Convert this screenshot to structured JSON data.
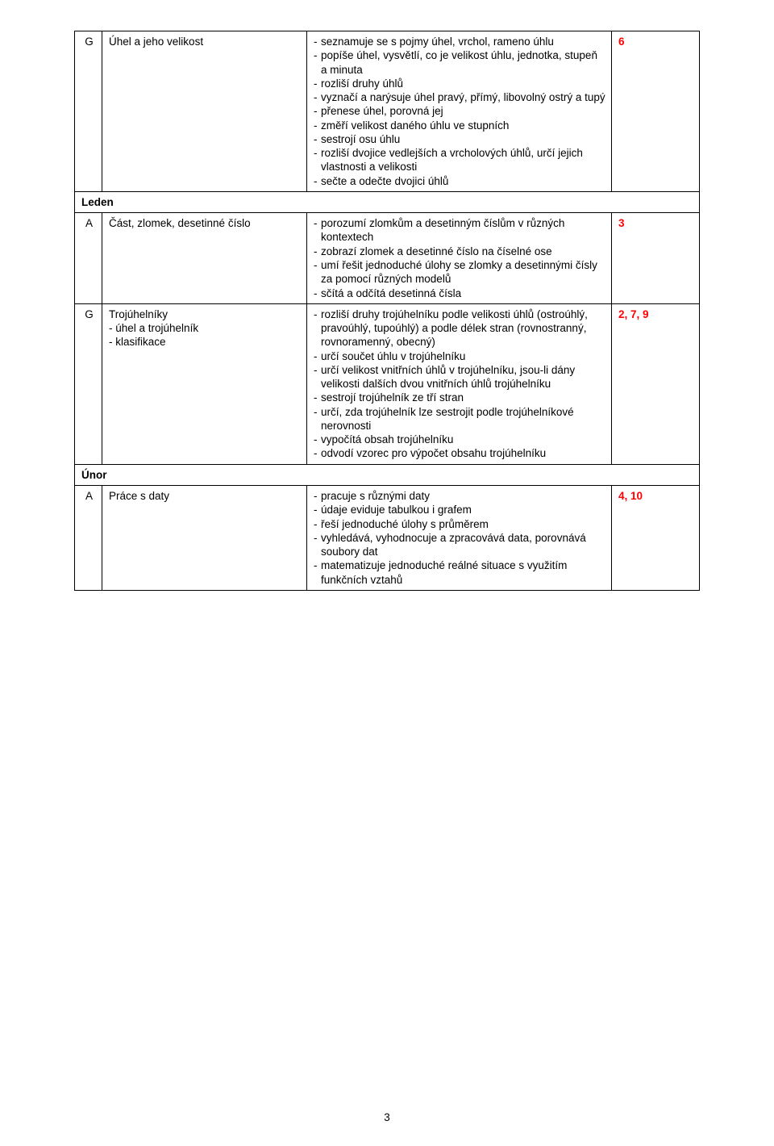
{
  "rows": [
    {
      "label": "G",
      "topic_lines": [
        "Úhel a jeho velikost"
      ],
      "outcomes": [
        "seznamuje se s pojmy úhel, vrchol, rameno úhlu",
        "popíše úhel, vysvětlí, co je velikost úhlu, jednotka, stupeň a minuta",
        "rozliší druhy úhlů",
        "vyznačí a narýsuje úhel pravý, přímý, libovolný ostrý a tupý",
        "přenese úhel, porovná jej",
        "změří velikost daného úhlu ve stupních",
        "sestrojí osu úhlu",
        "rozliší dvojice vedlejších a vrcholových úhlů, určí jejich vlastnosti a velikosti",
        "sečte a odečte dvojici úhlů"
      ],
      "rv": "6"
    }
  ],
  "section1": "Leden",
  "rows2": [
    {
      "label": "A",
      "topic_lines": [
        "Část, zlomek, desetinné číslo"
      ],
      "outcomes": [
        "porozumí zlomkům a desetinným číslům v různých kontextech",
        "zobrazí zlomek a desetinné číslo na číselné ose",
        "umí řešit jednoduché úlohy se zlomky a desetinnými čísly za pomocí různých modelů",
        "sčítá a odčítá desetinná čísla"
      ],
      "rv": "3"
    },
    {
      "label": "G",
      "topic_lines": [
        "Trojúhelníky",
        "- úhel a trojúhelník",
        "- klasifikace"
      ],
      "outcomes": [
        "rozliší druhy trojúhelníku podle velikosti úhlů (ostroúhlý, pravoúhlý, tupoúhlý) a podle délek stran (rovnostranný, rovnoramenný, obecný)",
        "určí součet úhlu v trojúhelníku",
        "určí velikost vnitřních úhlů v trojúhelníku, jsou-li dány velikosti dalších dvou vnitřních úhlů trojúhelníku",
        "sestrojí trojúhelník ze tří stran",
        "určí, zda trojúhelník lze sestrojit podle trojúhelníkové nerovnosti",
        "vypočítá obsah trojúhelníku",
        "odvodí vzorec pro výpočet obsahu trojúhelníku"
      ],
      "rv": "2, 7, 9"
    }
  ],
  "section2": "Únor",
  "rows3": [
    {
      "label": "A",
      "topic_lines": [
        "Práce s daty"
      ],
      "outcomes": [
        "pracuje s různými daty",
        "údaje eviduje tabulkou i grafem",
        "řeší jednoduché úlohy s průměrem",
        "vyhledává, vyhodnocuje a zpracovává data, porovnává soubory dat",
        "matematizuje jednoduché reálné situace s využitím funkčních vztahů"
      ],
      "rv": "4, 10"
    }
  ],
  "pageNumber": "3"
}
